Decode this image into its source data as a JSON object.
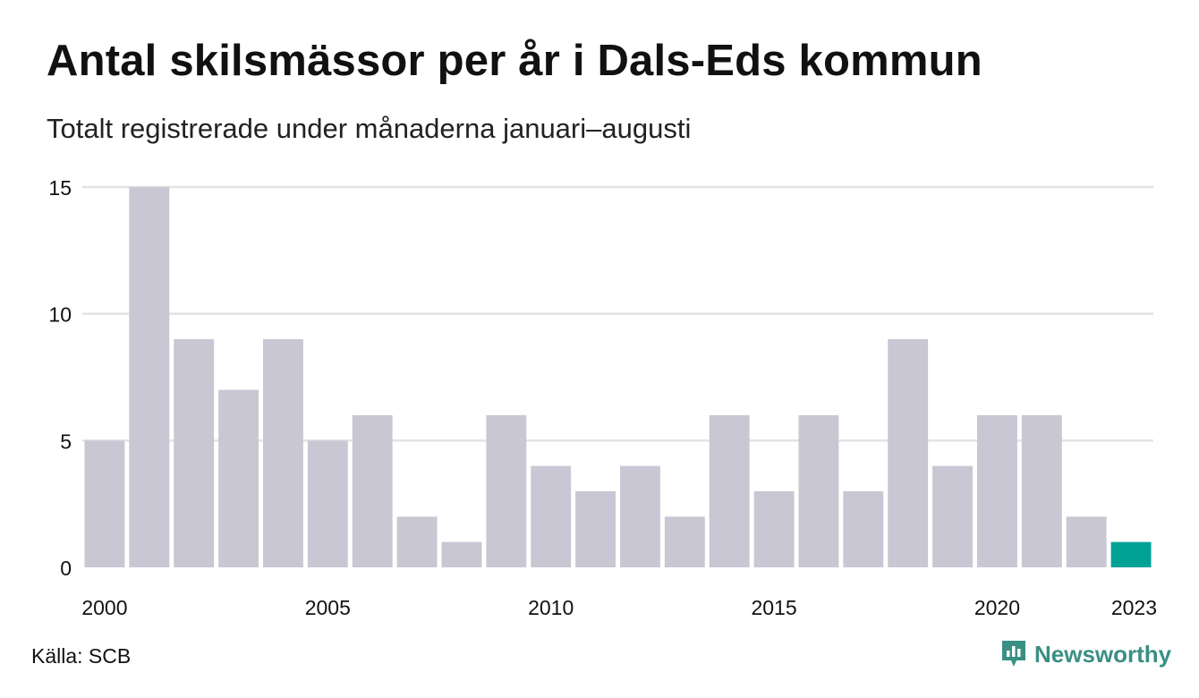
{
  "header": {
    "title": "Antal skilsmässor per år i Dals-Eds kommun",
    "subtitle": "Totalt registrerade under månaderna januari–augusti"
  },
  "footer": {
    "source": "Källa: SCB",
    "brand_name": "Newsworthy",
    "brand_icon": "newsworthy-logo-icon"
  },
  "colors": {
    "bar": "#c8c7d3",
    "highlight": "#00a296",
    "grid": "#e3e3e3",
    "brand": "#3a8f83"
  },
  "chart_data": {
    "type": "bar",
    "title": "Antal skilsmässor per år i Dals-Eds kommun",
    "subtitle": "Totalt registrerade under månaderna januari–augusti",
    "categories": [
      "2000",
      "2001",
      "2002",
      "2003",
      "2004",
      "2005",
      "2006",
      "2007",
      "2008",
      "2009",
      "2010",
      "2011",
      "2012",
      "2013",
      "2014",
      "2015",
      "2016",
      "2017",
      "2018",
      "2019",
      "2020",
      "2021",
      "2022",
      "2023"
    ],
    "values": [
      5,
      15,
      9,
      7,
      9,
      5,
      6,
      2,
      1,
      6,
      4,
      3,
      4,
      2,
      6,
      3,
      6,
      3,
      9,
      4,
      6,
      6,
      2,
      1
    ],
    "highlight_category": "2023",
    "ylim": [
      0,
      15
    ],
    "yticks": [
      0,
      5,
      10,
      15
    ],
    "xtick_labels": [
      "2000",
      "2005",
      "2010",
      "2015",
      "2020",
      "2023"
    ],
    "grid": true,
    "xlabel": "",
    "ylabel": ""
  }
}
